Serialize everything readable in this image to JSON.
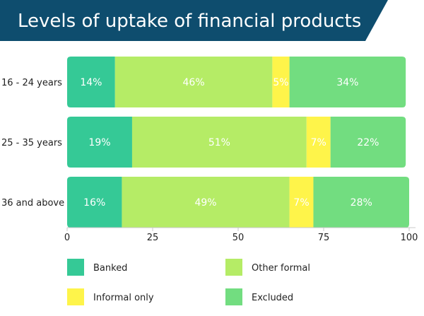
{
  "chart_data": {
    "type": "bar",
    "orientation": "horizontal",
    "stacked": true,
    "title": "Levels of uptake of financial products",
    "categories": [
      "16 - 24 years",
      "25 - 35 years",
      "36 and above"
    ],
    "series": [
      {
        "name": "Banked",
        "values": [
          14,
          19,
          16
        ],
        "color": "#35c996"
      },
      {
        "name": "Other formal",
        "values": [
          46,
          51,
          49
        ],
        "color": "#b5ec66"
      },
      {
        "name": "Informal only",
        "values": [
          5,
          7,
          7
        ],
        "color": "#fef44a"
      },
      {
        "name": "Excluded",
        "values": [
          34,
          22,
          28
        ],
        "color": "#72dd80"
      }
    ],
    "data_labels": [
      [
        "14%",
        "46%",
        "5%",
        "34%"
      ],
      [
        "19%",
        "51%",
        "7%",
        "22%"
      ],
      [
        "16%",
        "49%",
        "7%",
        "28%"
      ]
    ],
    "xlim": [
      0,
      100
    ],
    "xticks": [
      0,
      25,
      50,
      75,
      100
    ],
    "xtick_labels": [
      "0",
      "25",
      "50",
      "75",
      "100"
    ],
    "grid": false,
    "legend_position": "bottom",
    "title_banner_color": "#0e4d6e"
  }
}
